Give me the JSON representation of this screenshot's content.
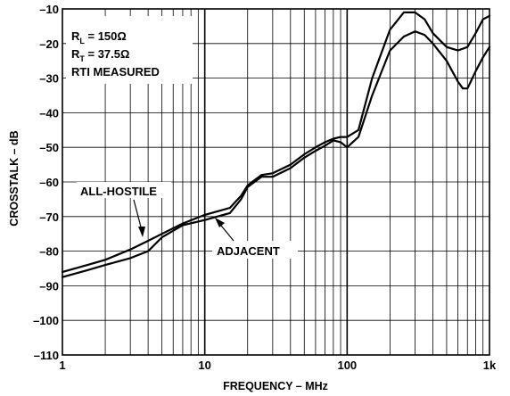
{
  "chart_data": {
    "type": "line",
    "xscale": "log",
    "xlim": [
      1,
      1000
    ],
    "ylim": [
      -110,
      -10
    ],
    "grid": true,
    "xlabel": "FREQUENCY – MHz",
    "ylabel": "CROSSTALK – dB",
    "x_tick_labels": [
      "1",
      "10",
      "100",
      "1k"
    ],
    "y_tick_labels": [
      "–10",
      "–20",
      "–30",
      "–40",
      "–50",
      "–60",
      "–70",
      "–80",
      "–90",
      "–100",
      "–110"
    ],
    "conditions": {
      "line1_main": "R",
      "line1_sub": "L",
      "line1_rest": " = 150Ω",
      "line2_main": "R",
      "line2_sub": "T",
      "line2_rest": " = 37.5Ω",
      "line3": "RTI MEASURED"
    },
    "series": [
      {
        "name": "ALL-HOSTILE",
        "points": [
          [
            1,
            -86
          ],
          [
            1.5,
            -84
          ],
          [
            2,
            -82.5
          ],
          [
            3,
            -79.5
          ],
          [
            4,
            -77
          ],
          [
            5,
            -75
          ],
          [
            7,
            -72
          ],
          [
            10,
            -69.5
          ],
          [
            15,
            -67.5
          ],
          [
            18,
            -64
          ],
          [
            20,
            -61
          ],
          [
            25,
            -58
          ],
          [
            30,
            -57.5
          ],
          [
            40,
            -55
          ],
          [
            50,
            -52
          ],
          [
            60,
            -50
          ],
          [
            70,
            -48.5
          ],
          [
            80,
            -47.5
          ],
          [
            90,
            -47
          ],
          [
            100,
            -47
          ],
          [
            120,
            -45
          ],
          [
            150,
            -30
          ],
          [
            200,
            -16
          ],
          [
            250,
            -11
          ],
          [
            300,
            -11
          ],
          [
            350,
            -13
          ],
          [
            400,
            -17
          ],
          [
            500,
            -21
          ],
          [
            600,
            -22
          ],
          [
            700,
            -21
          ],
          [
            800,
            -17
          ],
          [
            900,
            -13
          ],
          [
            1000,
            -12
          ]
        ]
      },
      {
        "name": "ADJACENT",
        "points": [
          [
            1,
            -87.5
          ],
          [
            1.5,
            -85.5
          ],
          [
            2,
            -84
          ],
          [
            3,
            -82
          ],
          [
            4,
            -80
          ],
          [
            5,
            -76
          ],
          [
            7,
            -72.5
          ],
          [
            10,
            -71
          ],
          [
            15,
            -69
          ],
          [
            18,
            -65
          ],
          [
            20,
            -61.5
          ],
          [
            25,
            -58.5
          ],
          [
            30,
            -58.5
          ],
          [
            40,
            -56
          ],
          [
            50,
            -53
          ],
          [
            60,
            -51
          ],
          [
            70,
            -49.5
          ],
          [
            80,
            -48
          ],
          [
            90,
            -48.5
          ],
          [
            100,
            -50
          ],
          [
            120,
            -47
          ],
          [
            150,
            -35
          ],
          [
            200,
            -22
          ],
          [
            250,
            -18
          ],
          [
            300,
            -16.5
          ],
          [
            350,
            -17.5
          ],
          [
            400,
            -20
          ],
          [
            500,
            -25
          ],
          [
            600,
            -31
          ],
          [
            650,
            -33
          ],
          [
            700,
            -33
          ],
          [
            800,
            -28
          ],
          [
            900,
            -24
          ],
          [
            1000,
            -21
          ]
        ]
      }
    ],
    "annotations": [
      {
        "text": "ALL-HOSTILE",
        "target": [
          3.5,
          -77.5
        ]
      },
      {
        "text": "ADJACENT",
        "target": [
          12.5,
          -69
        ]
      }
    ]
  }
}
